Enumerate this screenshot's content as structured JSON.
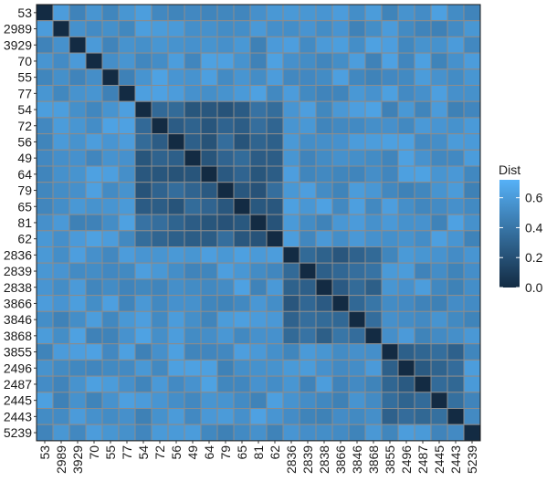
{
  "chart_data": {
    "type": "heatmap",
    "title": "",
    "xlabel": "",
    "ylabel": "",
    "labels": [
      "53",
      "2989",
      "3929",
      "70",
      "55",
      "77",
      "54",
      "72",
      "56",
      "49",
      "64",
      "79",
      "65",
      "81",
      "62",
      "2836",
      "2839",
      "2838",
      "3866",
      "3846",
      "3868",
      "3855",
      "2496",
      "2487",
      "2445",
      "2443",
      "5239"
    ],
    "groups": [
      [
        0,
        1,
        2
      ],
      [
        3,
        4,
        5
      ],
      [
        6,
        7,
        8,
        9,
        10,
        11,
        12,
        13,
        14
      ],
      [
        15,
        16,
        17,
        18,
        19,
        20
      ],
      [
        21,
        22,
        23,
        24,
        25
      ],
      [
        26
      ]
    ],
    "within_group_value": {
      "2": 0.3,
      "3": 0.32,
      "4": 0.28
    },
    "between_group_value": 0.55,
    "diagonal_value": 0.0,
    "legend": {
      "title": "Dist",
      "ticks": [
        0.0,
        0.2,
        0.4,
        0.6
      ],
      "tick_labels": [
        "0.0",
        "0.2",
        "0.4",
        "0.6"
      ],
      "range": [
        0.0,
        0.72
      ],
      "placement": "right",
      "low_color": "#132b43",
      "high_color": "#56b1f7"
    },
    "cell_border_color": "#8c8c8c"
  }
}
